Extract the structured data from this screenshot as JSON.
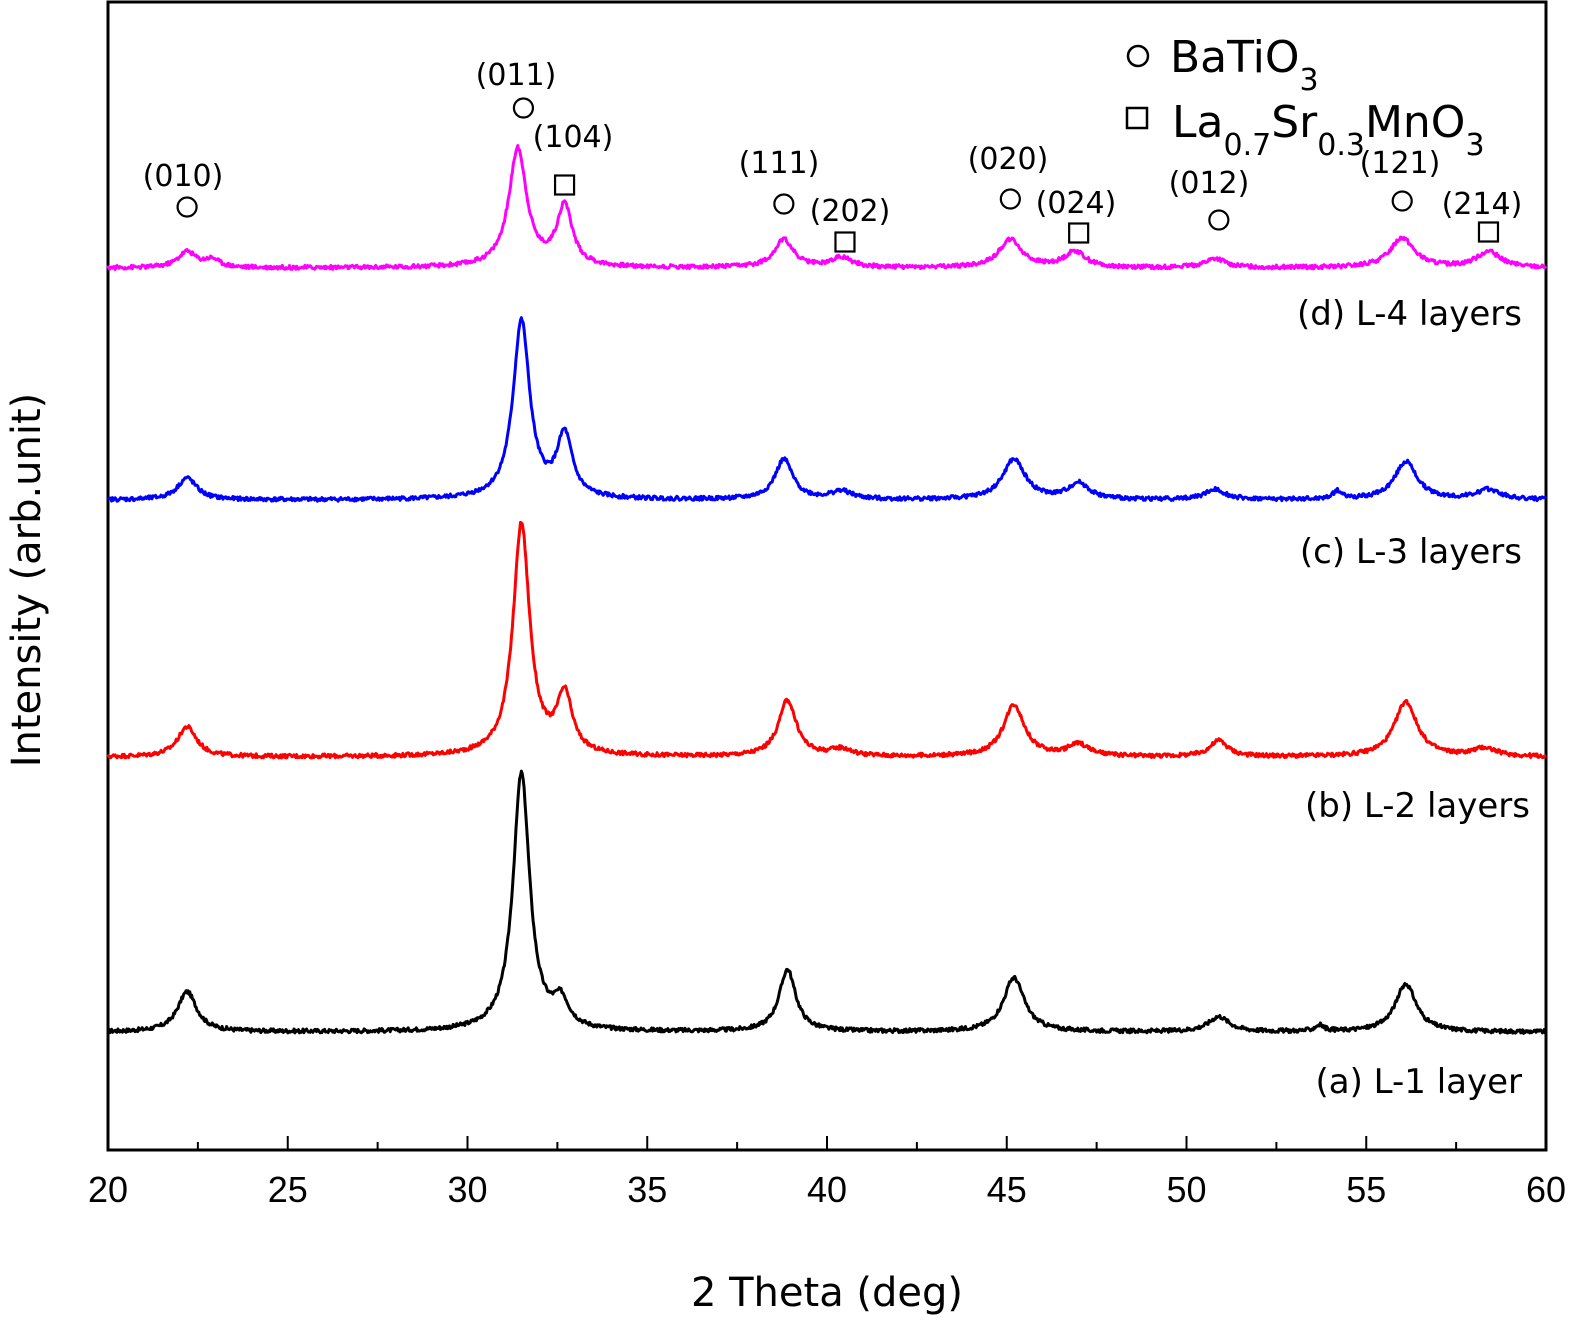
{
  "chart_data": {
    "type": "line",
    "title": "",
    "xlabel": "2 Theta (deg)",
    "ylabel": "Intensity (arb.unit)",
    "xlim": [
      20,
      60
    ],
    "x_ticks": [
      "20",
      "25",
      "30",
      "35",
      "40",
      "45",
      "50",
      "55",
      "60"
    ],
    "y_ticks_shown": false,
    "grid": false,
    "legend": {
      "placement": "top-right",
      "entries": [
        {
          "marker": "circle",
          "formula": "BaTiO",
          "subs": [
            "3"
          ]
        },
        {
          "marker": "square",
          "formula_parts": [
            "La",
            "0.7",
            "Sr",
            "0.3",
            "MnO",
            "3"
          ]
        }
      ]
    },
    "series": [
      {
        "name": "(a) L-1 layer",
        "color": "#000000",
        "peaks": [
          {
            "x": 22.2,
            "height": 40,
            "width": 0.32
          },
          {
            "x": 31.5,
            "height": 258,
            "width": 0.28
          },
          {
            "x": 32.6,
            "height": 26,
            "width": 0.26
          },
          {
            "x": 38.9,
            "height": 62,
            "width": 0.28
          },
          {
            "x": 45.2,
            "height": 54,
            "width": 0.35
          },
          {
            "x": 50.9,
            "height": 15,
            "width": 0.35
          },
          {
            "x": 53.7,
            "height": 6,
            "width": 0.15
          },
          {
            "x": 56.1,
            "height": 48,
            "width": 0.35
          }
        ]
      },
      {
        "name": "(b) L-2 layers",
        "color": "#ff0000",
        "peaks": [
          {
            "x": 22.2,
            "height": 30,
            "width": 0.32
          },
          {
            "x": 31.5,
            "height": 232,
            "width": 0.28
          },
          {
            "x": 32.7,
            "height": 58,
            "width": 0.26
          },
          {
            "x": 38.9,
            "height": 56,
            "width": 0.3
          },
          {
            "x": 40.4,
            "height": 7,
            "width": 0.35
          },
          {
            "x": 45.2,
            "height": 52,
            "width": 0.35
          },
          {
            "x": 47.0,
            "height": 12,
            "width": 0.35
          },
          {
            "x": 50.9,
            "height": 16,
            "width": 0.3
          },
          {
            "x": 56.1,
            "height": 55,
            "width": 0.38
          },
          {
            "x": 58.3,
            "height": 8,
            "width": 0.4
          }
        ]
      },
      {
        "name": "(c) L-3 layers",
        "color": "#0000ff",
        "peaks": [
          {
            "x": 22.2,
            "height": 22,
            "width": 0.32
          },
          {
            "x": 31.5,
            "height": 178,
            "width": 0.28
          },
          {
            "x": 32.7,
            "height": 62,
            "width": 0.26
          },
          {
            "x": 38.8,
            "height": 40,
            "width": 0.3
          },
          {
            "x": 40.4,
            "height": 8,
            "width": 0.35
          },
          {
            "x": 45.2,
            "height": 40,
            "width": 0.38
          },
          {
            "x": 47.0,
            "height": 16,
            "width": 0.35
          },
          {
            "x": 50.8,
            "height": 10,
            "width": 0.35
          },
          {
            "x": 54.2,
            "height": 8,
            "width": 0.15
          },
          {
            "x": 56.1,
            "height": 38,
            "width": 0.38
          },
          {
            "x": 58.4,
            "height": 10,
            "width": 0.4
          }
        ]
      },
      {
        "name": "(d) L-4 layers",
        "color": "#ff00ff",
        "peaks": [
          {
            "x": 22.2,
            "height": 16,
            "width": 0.3
          },
          {
            "x": 22.9,
            "height": 8,
            "width": 0.25
          },
          {
            "x": 31.4,
            "height": 118,
            "width": 0.3
          },
          {
            "x": 32.7,
            "height": 60,
            "width": 0.26
          },
          {
            "x": 38.8,
            "height": 28,
            "width": 0.32
          },
          {
            "x": 40.4,
            "height": 10,
            "width": 0.35
          },
          {
            "x": 45.1,
            "height": 28,
            "width": 0.38
          },
          {
            "x": 46.9,
            "height": 16,
            "width": 0.35
          },
          {
            "x": 50.8,
            "height": 9,
            "width": 0.35
          },
          {
            "x": 56.0,
            "height": 30,
            "width": 0.4
          },
          {
            "x": 58.4,
            "height": 16,
            "width": 0.4
          }
        ]
      }
    ],
    "annotations": [
      {
        "label": "(010)",
        "phase": "circle",
        "x": 22.2
      },
      {
        "label": "(011)",
        "phase": "circle",
        "x": 31.5
      },
      {
        "label": "(104)",
        "phase": "square",
        "x": 32.7
      },
      {
        "label": "(111)",
        "phase": "circle",
        "x": 38.8
      },
      {
        "label": "(202)",
        "phase": "square",
        "x": 40.5
      },
      {
        "label": "(020)",
        "phase": "circle",
        "x": 45.1
      },
      {
        "label": "(024)",
        "phase": "square",
        "x": 47.0
      },
      {
        "label": "(012)",
        "phase": "circle",
        "x": 50.9
      },
      {
        "label": "(121)",
        "phase": "circle",
        "x": 56.0
      },
      {
        "label": "(214)",
        "phase": "square",
        "x": 58.4
      }
    ]
  }
}
